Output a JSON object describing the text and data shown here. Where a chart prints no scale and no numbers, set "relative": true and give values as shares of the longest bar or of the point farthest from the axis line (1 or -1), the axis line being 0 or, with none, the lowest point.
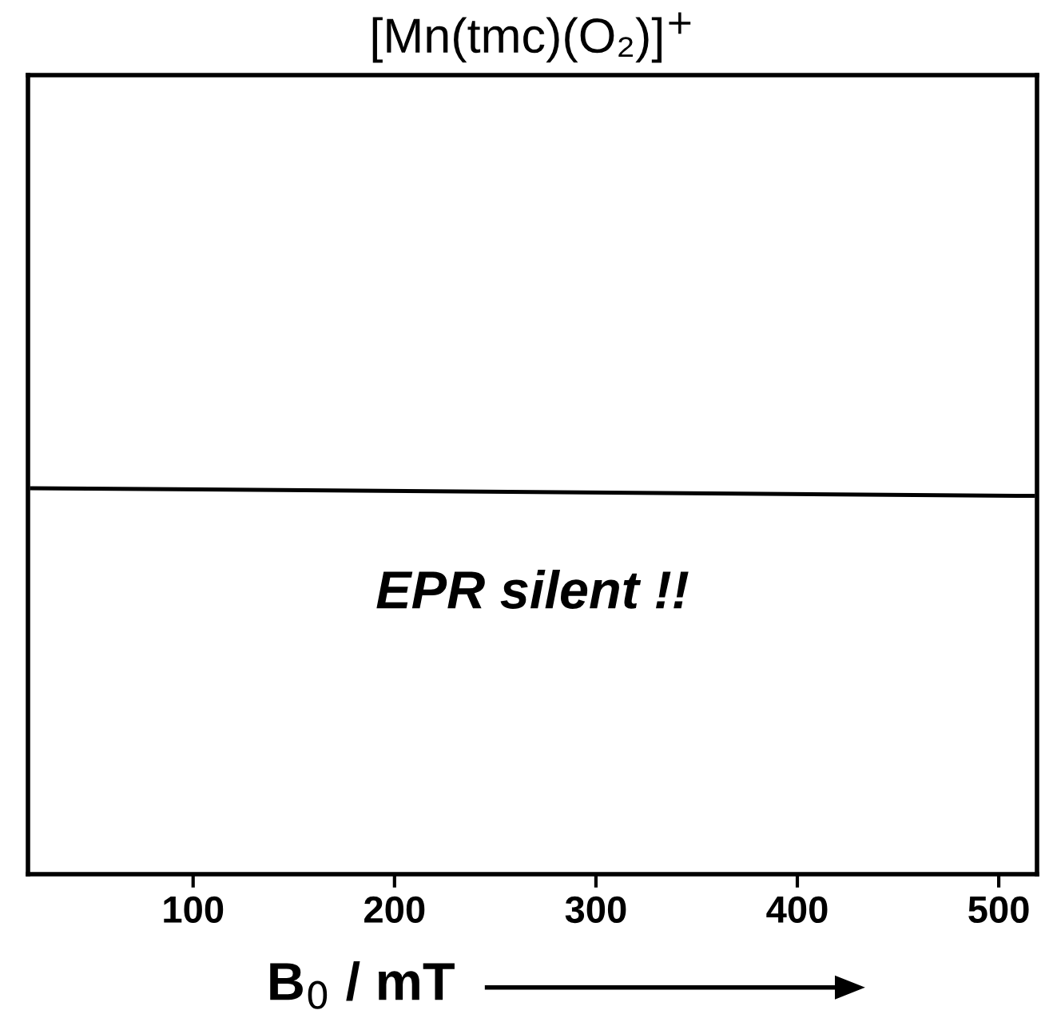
{
  "chart_data": {
    "type": "line",
    "title": "[Mn(tmc)(O₂)]$^{+}$",
    "xlabel": "B$_{0}$ / mT",
    "relative": true,
    "tick_labels": "x",
    "xlim": [
      18,
      519
    ],
    "xticks": [
      100,
      200,
      300,
      400,
      500
    ],
    "series": [
      {
        "color": "#000000",
        "x": [
          20,
          517
        ],
        "values": [
          1,
          0.98
        ]
      }
    ],
    "annotations": [
      "EPR silent !!"
    ],
    "marker": "none",
    "line_style": "solid",
    "grid": false
  }
}
